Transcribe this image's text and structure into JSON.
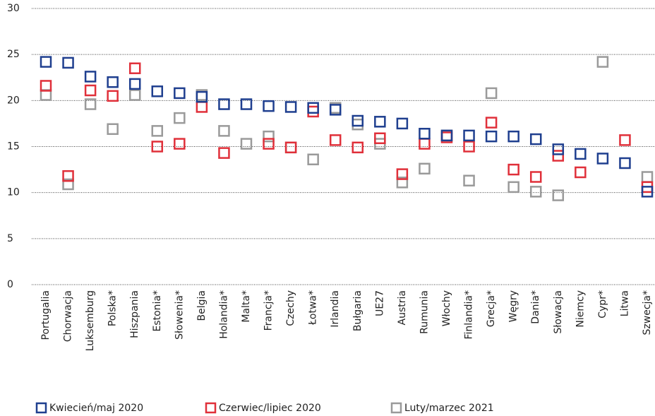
{
  "chart_data": {
    "type": "scatter",
    "categories": [
      "Portugalia",
      "Chorwacja",
      "Luksemburg",
      "Polska*",
      "Hiszpania",
      "Estonia*",
      "Słowenia*",
      "Belgia",
      "Holandia*",
      "Malta*",
      "Francja*",
      "Czechy",
      "Łotwa*",
      "Irlandia",
      "Bułgaria",
      "UE27",
      "Austria",
      "Rumunia",
      "Włochy",
      "Finlandia*",
      "Grecja*",
      "Węgry",
      "Dania*",
      "Słowacja",
      "Niemcy",
      "Cypr*",
      "Litwa",
      "Szwecja*"
    ],
    "series": [
      {
        "name": "Luty/marzec 2021",
        "color": "#9a9a9a",
        "values": [
          20.6,
          10.9,
          19.6,
          16.9,
          20.6,
          16.7,
          18.1,
          20.6,
          16.7,
          15.3,
          16.1,
          14.9,
          13.6,
          19.2,
          17.4,
          15.3,
          11.1,
          12.6,
          16.2,
          11.3,
          20.8,
          10.6,
          10.1,
          9.7,
          null,
          24.2,
          null,
          11.7
        ]
      },
      {
        "name": "Czerwiec/lipiec 2020",
        "color": "#e0303a",
        "values": [
          21.6,
          11.8,
          21.1,
          20.5,
          23.5,
          15.0,
          15.3,
          19.3,
          14.3,
          null,
          15.3,
          14.9,
          18.8,
          15.7,
          14.9,
          15.9,
          12.0,
          15.3,
          16.0,
          15.0,
          17.6,
          12.5,
          11.7,
          14.0,
          12.2,
          null,
          15.7,
          10.6
        ]
      },
      {
        "name": "Kwiecień/maj 2020",
        "color": "#1f3f8f",
        "values": [
          24.2,
          24.1,
          22.6,
          22.0,
          21.8,
          21.0,
          20.8,
          20.4,
          19.6,
          19.6,
          19.4,
          19.3,
          19.2,
          19.0,
          17.8,
          17.7,
          17.5,
          16.4,
          16.2,
          16.2,
          16.1,
          16.1,
          15.8,
          14.7,
          14.2,
          13.7,
          13.2,
          10.1
        ]
      }
    ],
    "legend_order": [
      "Kwiecień/maj 2020",
      "Czerwiec/lipiec 2020",
      "Luty/marzec 2021"
    ],
    "ylim": [
      0,
      30
    ],
    "yticks": [
      0,
      5,
      10,
      15,
      20,
      25,
      30
    ],
    "grid": true
  }
}
